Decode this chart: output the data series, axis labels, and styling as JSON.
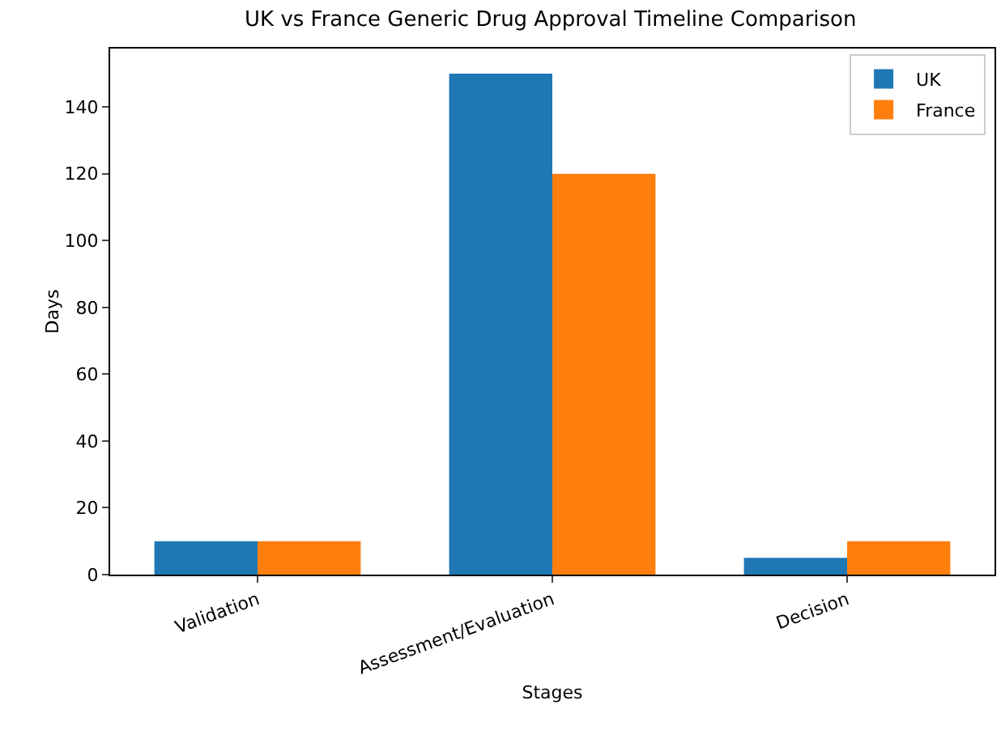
{
  "chart_data": {
    "type": "bar",
    "title": "UK vs France Generic Drug Approval Timeline Comparison",
    "xlabel": "Stages",
    "ylabel": "Days",
    "categories": [
      "Validation",
      "Assessment/Evaluation",
      "Decision"
    ],
    "series": [
      {
        "name": "UK",
        "color": "#1f77b4",
        "values": [
          10,
          150,
          5
        ]
      },
      {
        "name": "France",
        "color": "#ff7f0e",
        "values": [
          10,
          120,
          10
        ]
      }
    ],
    "ylim": [
      0,
      157.5
    ],
    "yticks": [
      0,
      20,
      40,
      60,
      80,
      100,
      120,
      140
    ],
    "grid": false,
    "legend": "top right"
  }
}
